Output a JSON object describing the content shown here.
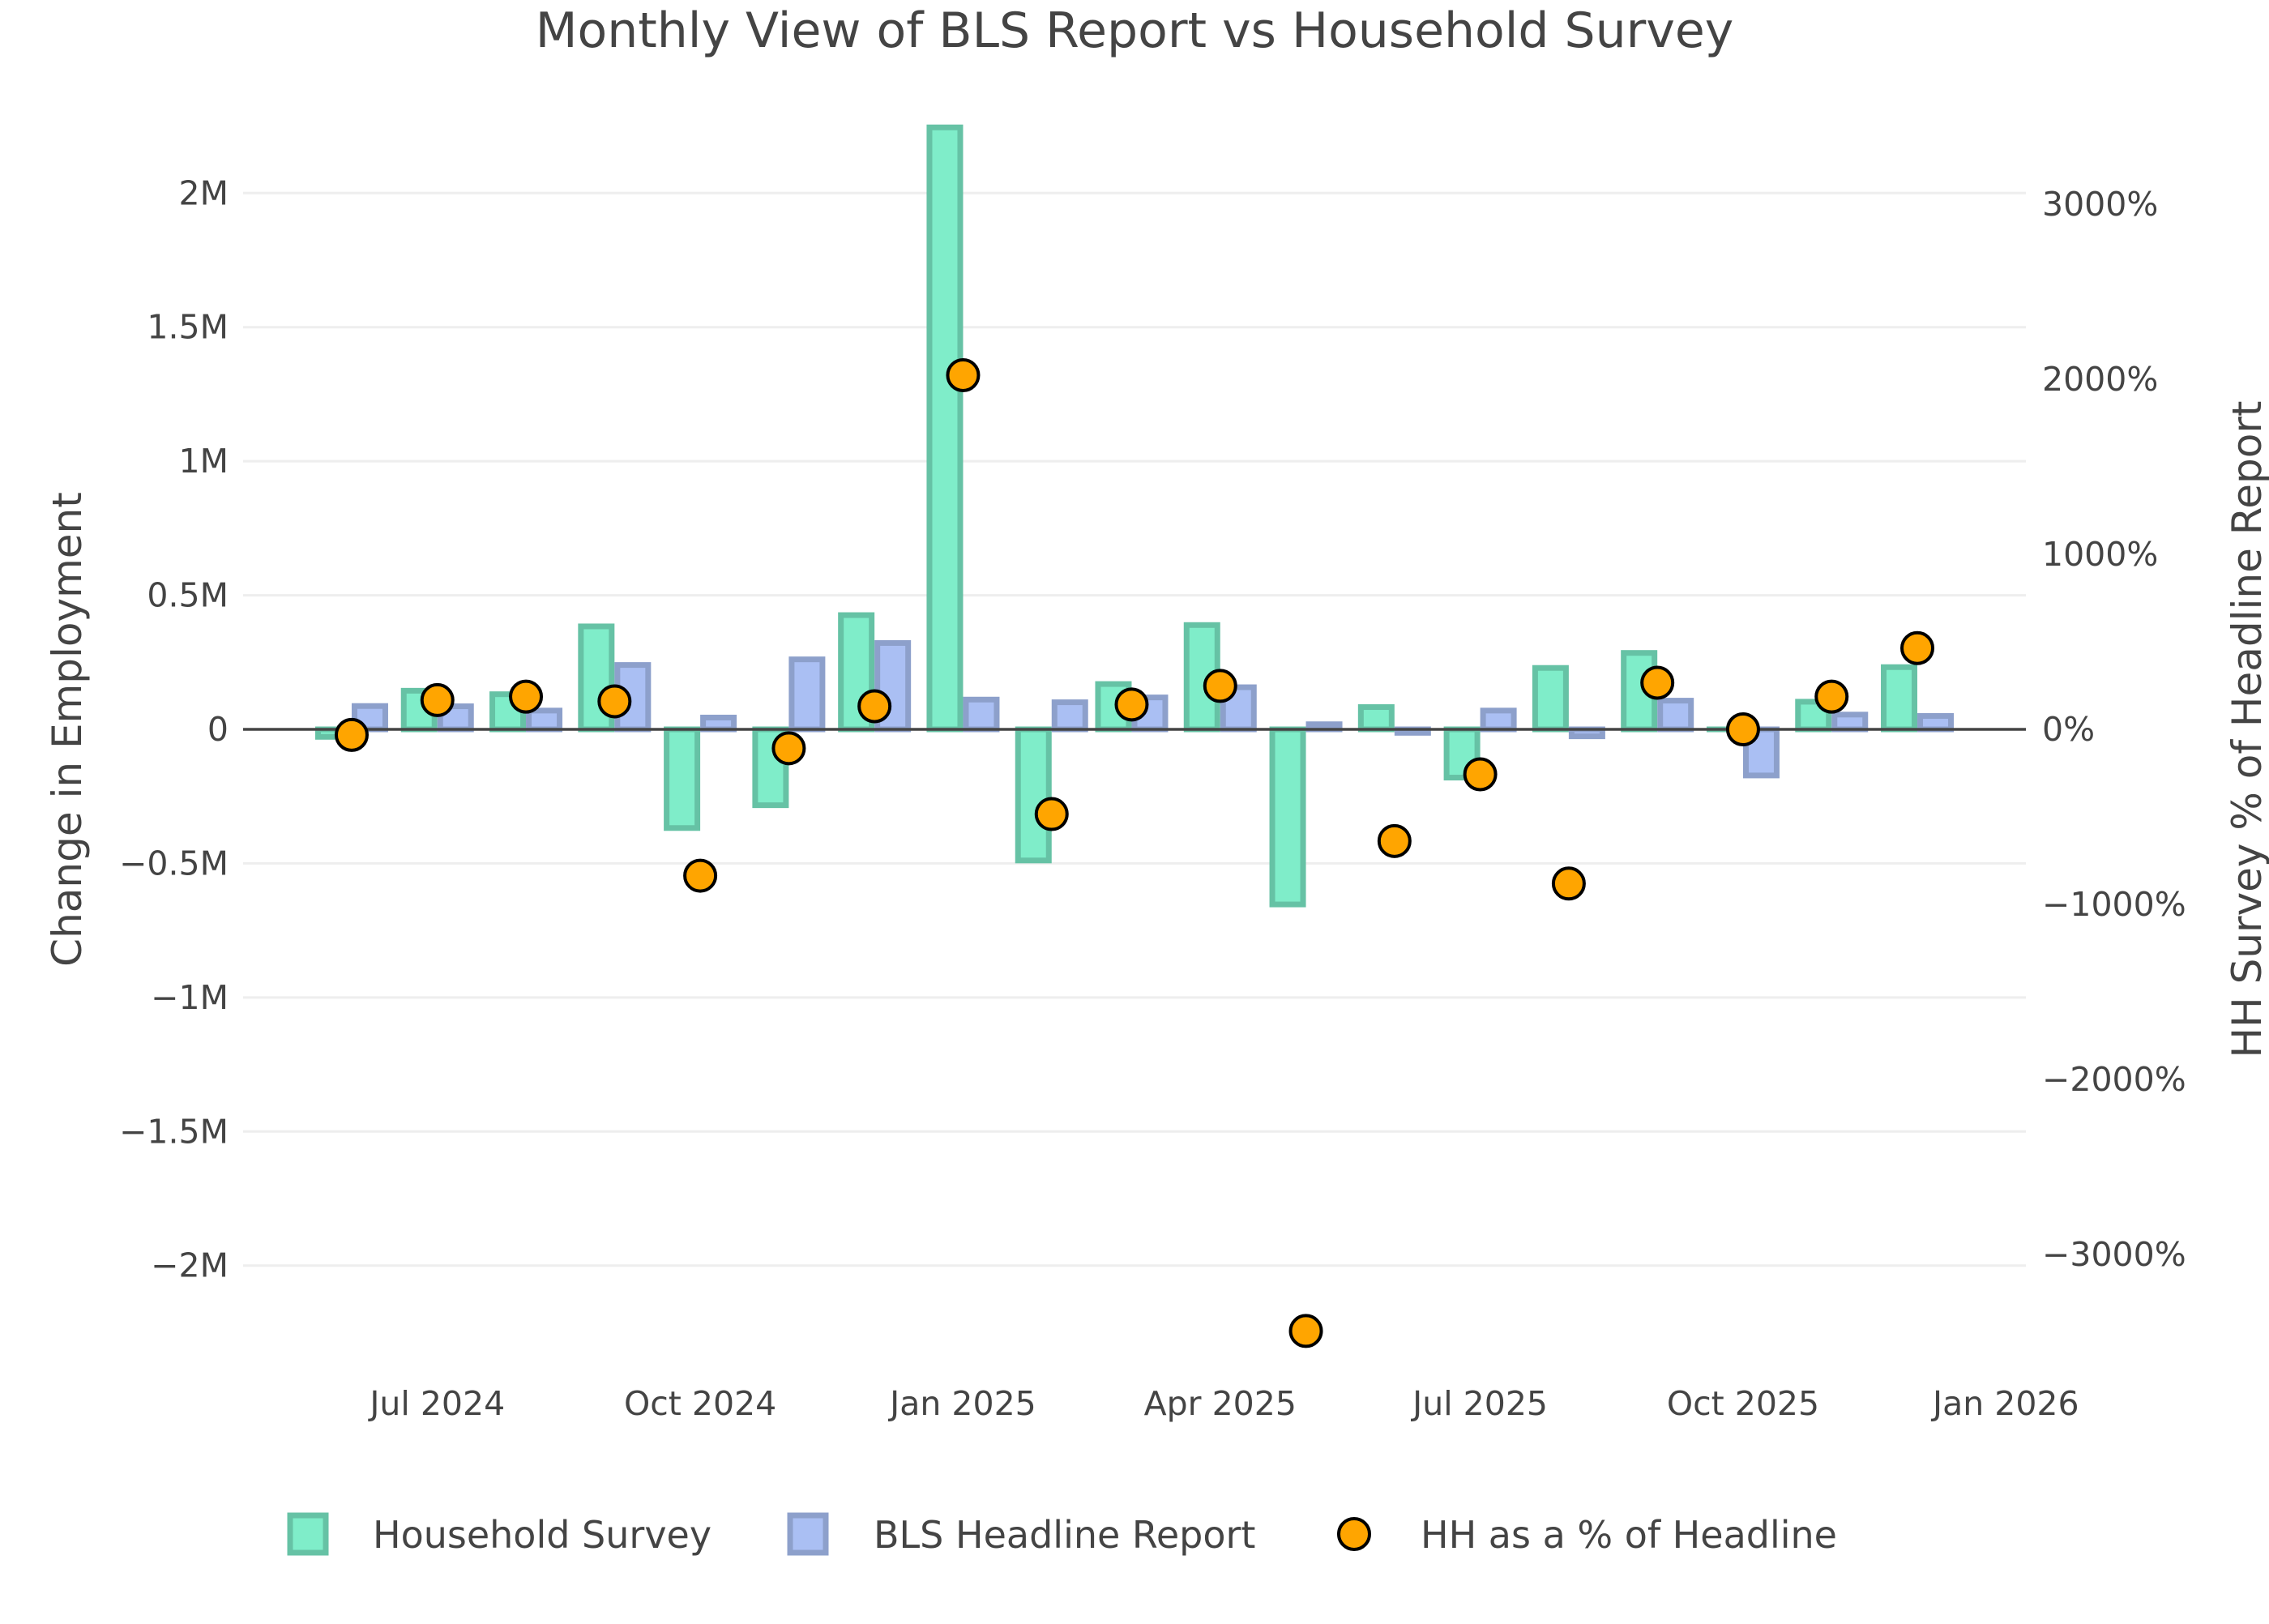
{
  "chart_data": {
    "type": "bar",
    "title": "Monthly View of BLS Report vs Household Survey",
    "xlabel": "",
    "ylabel": "Change in Employment",
    "y2label": "HH Survey % of Headline Report",
    "ylim": [
      -2300000,
      2300000
    ],
    "y2lim": [
      -3523,
      3523
    ],
    "xlim": [
      "2024-04-24",
      "2026-01-08"
    ],
    "grid": true,
    "legend_position": "bottom-center",
    "x": [
      "2024-06-01",
      "2024-07-01",
      "2024-08-01",
      "2024-09-01",
      "2024-10-01",
      "2024-11-01",
      "2024-12-01",
      "2025-01-01",
      "2025-02-01",
      "2025-03-01",
      "2025-04-01",
      "2025-05-01",
      "2025-06-01",
      "2025-07-01",
      "2025-08-01",
      "2025-09-01",
      "2025-10-01",
      "2025-11-01",
      "2025-12-01"
    ],
    "x_tick_values": [
      "2024-07-01",
      "2024-10-01",
      "2025-01-01",
      "2025-04-01",
      "2025-07-01",
      "2025-10-01",
      "2026-01-01"
    ],
    "x_tick_labels": [
      "Jul 2024",
      "Oct 2024",
      "Jan 2025",
      "Apr 2025",
      "Jul 2025",
      "Oct 2025",
      "Jan 2026"
    ],
    "y_tick_values": [
      2000000,
      1500000,
      1000000,
      500000,
      0,
      -500000,
      -1000000,
      -1500000,
      -2000000
    ],
    "y_tick_labels": [
      "2M",
      "1.5M",
      "1M",
      "0.5M",
      "0",
      "−0.5M",
      "−1M",
      "−1.5M",
      "−2M"
    ],
    "y2_tick_values": [
      3000,
      2000,
      1000,
      0,
      -1000,
      -2000,
      -3000
    ],
    "y2_tick_labels": [
      "3000%",
      "2000%",
      "1000%",
      "0%",
      "−1000%",
      "−2000%",
      "−3000%"
    ],
    "series": [
      {
        "name": "Household Survey",
        "type": "bar",
        "axis": "left",
        "fill": "#7FEDC9",
        "stroke": "#66C2A5",
        "values": [
          -28000,
          144000,
          131000,
          384000,
          -368000,
          -283000,
          426000,
          2245000,
          -489000,
          169000,
          389000,
          -653000,
          83000,
          -180000,
          229000,
          285000,
          0,
          103000,
          232000
        ]
      },
      {
        "name": "BLS Headline Report",
        "type": "bar",
        "axis": "left",
        "fill": "#AABFF3",
        "stroke": "#8DA0CB",
        "values": [
          87000,
          86000,
          70000,
          240000,
          44000,
          261000,
          322000,
          111000,
          101000,
          119000,
          157000,
          19000,
          -13000,
          70000,
          -26000,
          107000,
          -172000,
          55000,
          50000
        ]
      },
      {
        "name": "HH as a % of Headline",
        "type": "scatter",
        "axis": "right",
        "fill": "#FFA500",
        "stroke": "#000000",
        "values": [
          -32,
          167,
          187,
          160,
          -836,
          -108,
          132,
          2023,
          -484,
          142,
          248,
          -3437,
          -638,
          -257,
          -881,
          266,
          0,
          187,
          464
        ]
      }
    ]
  }
}
